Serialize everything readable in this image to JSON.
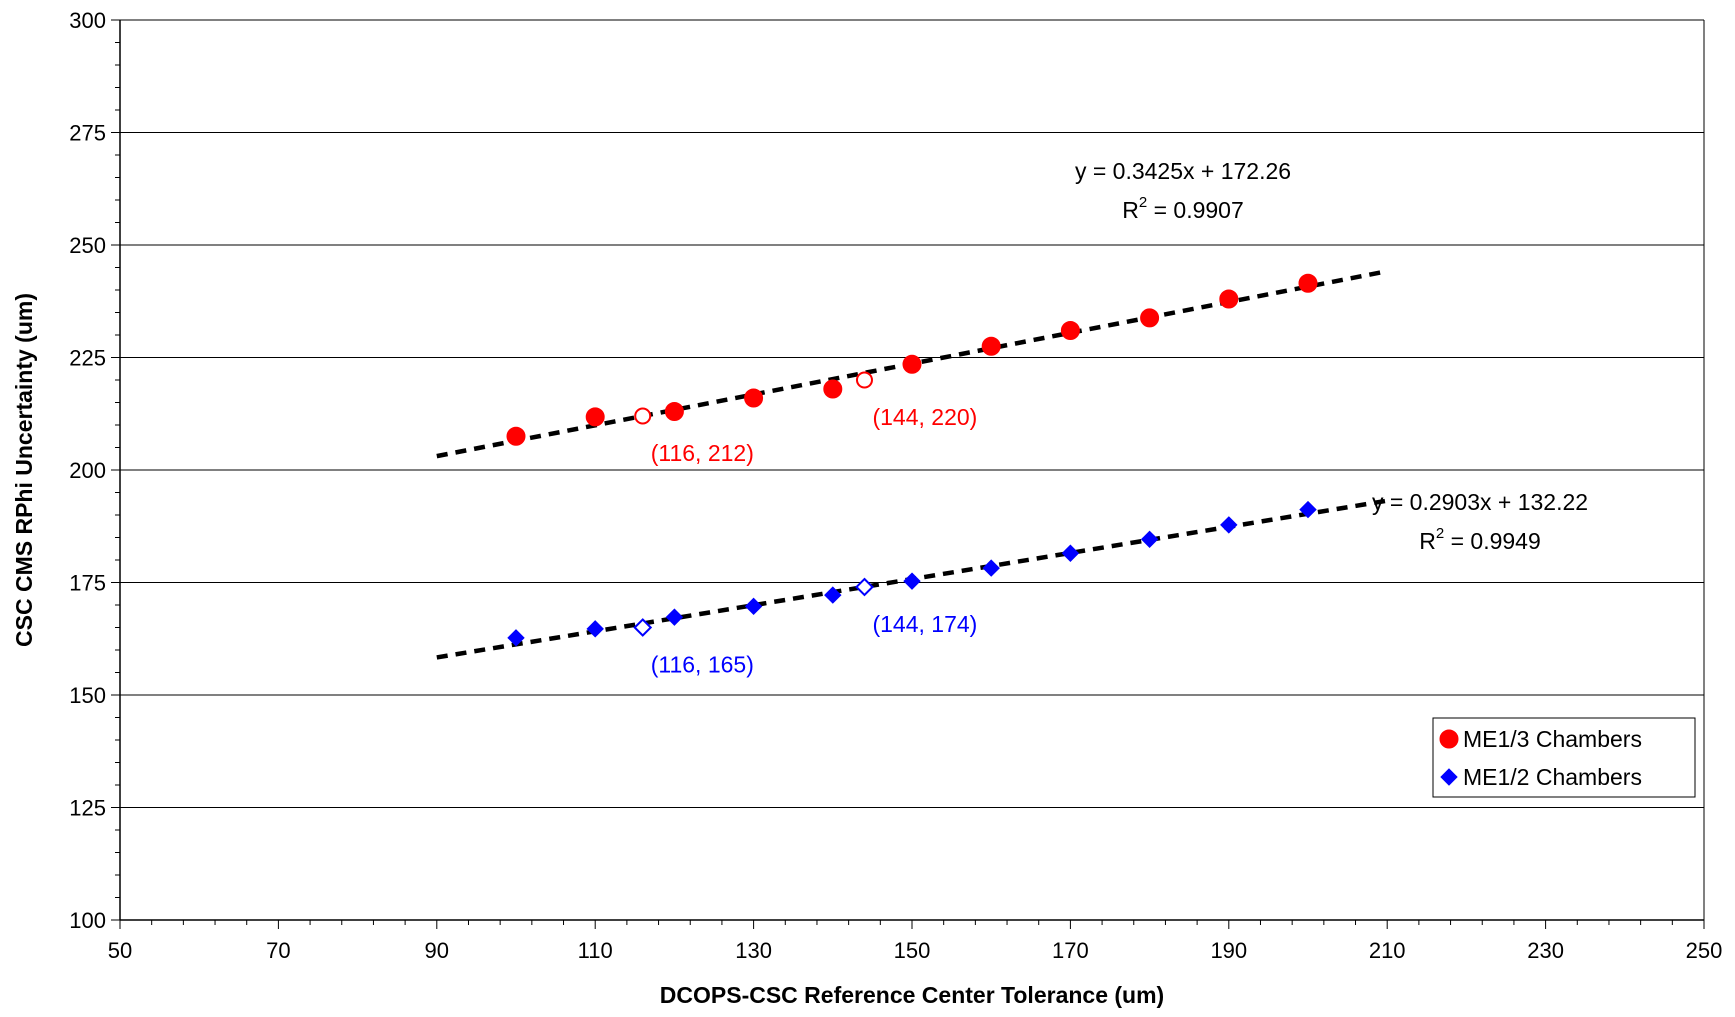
{
  "chart_data": {
    "type": "scatter",
    "title": "",
    "xlabel": "DCOPS-CSC Reference Center Tolerance (um)",
    "ylabel": "CSC CMS RPhi Uncertainty (um)",
    "xlim": [
      50,
      250
    ],
    "ylim": [
      100,
      300
    ],
    "x_ticks": [
      50,
      70,
      90,
      110,
      130,
      150,
      170,
      190,
      210,
      230,
      250
    ],
    "y_ticks": [
      100,
      125,
      150,
      175,
      200,
      225,
      250,
      275,
      300
    ],
    "grid": "horizontal major gridlines",
    "legend_position": "right",
    "series": [
      {
        "name": "ME1/3 Chambers",
        "color": "#ff0000",
        "marker": "circle",
        "x": [
          100,
          110,
          120,
          130,
          140,
          150,
          160,
          170,
          180,
          190,
          200
        ],
        "y": [
          207.5,
          211.8,
          213,
          216,
          218,
          223.5,
          227.5,
          231,
          233.8,
          238,
          241.5
        ]
      },
      {
        "name": "ME1/2 Chambers",
        "color": "#0000ff",
        "marker": "diamond",
        "x": [
          100,
          110,
          120,
          130,
          140,
          150,
          160,
          170,
          180,
          190,
          200
        ],
        "y": [
          162.7,
          164.7,
          167.3,
          169.7,
          172.2,
          175.3,
          178.2,
          181.5,
          184.6,
          187.8,
          191.2
        ]
      }
    ],
    "highlight_points": [
      {
        "series": "ME1/3 Chambers",
        "x": 116,
        "y": 212,
        "label": "(116, 212)",
        "color": "#ff0000",
        "marker": "open-circle",
        "label_side": "below-right"
      },
      {
        "series": "ME1/3 Chambers",
        "x": 144,
        "y": 220,
        "label": "(144, 220)",
        "color": "#ff0000",
        "marker": "open-circle",
        "label_side": "below-right"
      },
      {
        "series": "ME1/2 Chambers",
        "x": 116,
        "y": 165,
        "label": "(116, 165)",
        "color": "#0000ff",
        "marker": "open-diamond",
        "label_side": "below-right"
      },
      {
        "series": "ME1/2 Chambers",
        "x": 144,
        "y": 174,
        "label": "(144, 174)",
        "color": "#0000ff",
        "marker": "open-diamond",
        "label_side": "below-right"
      }
    ],
    "trendlines": [
      {
        "series": "ME1/3 Chambers",
        "slope": 0.3425,
        "intercept": 172.26,
        "x_range": [
          90,
          210
        ],
        "equation": "y = 0.3425x + 172.26",
        "r2_label": "R",
        "r2_value": " = 0.9907",
        "r2_sup": "2"
      },
      {
        "series": "ME1/2 Chambers",
        "slope": 0.2903,
        "intercept": 132.22,
        "x_range": [
          90,
          210
        ],
        "equation": "y = 0.2903x + 132.22",
        "r2_label": "R",
        "r2_value": " = 0.9949",
        "r2_sup": "2"
      }
    ]
  }
}
